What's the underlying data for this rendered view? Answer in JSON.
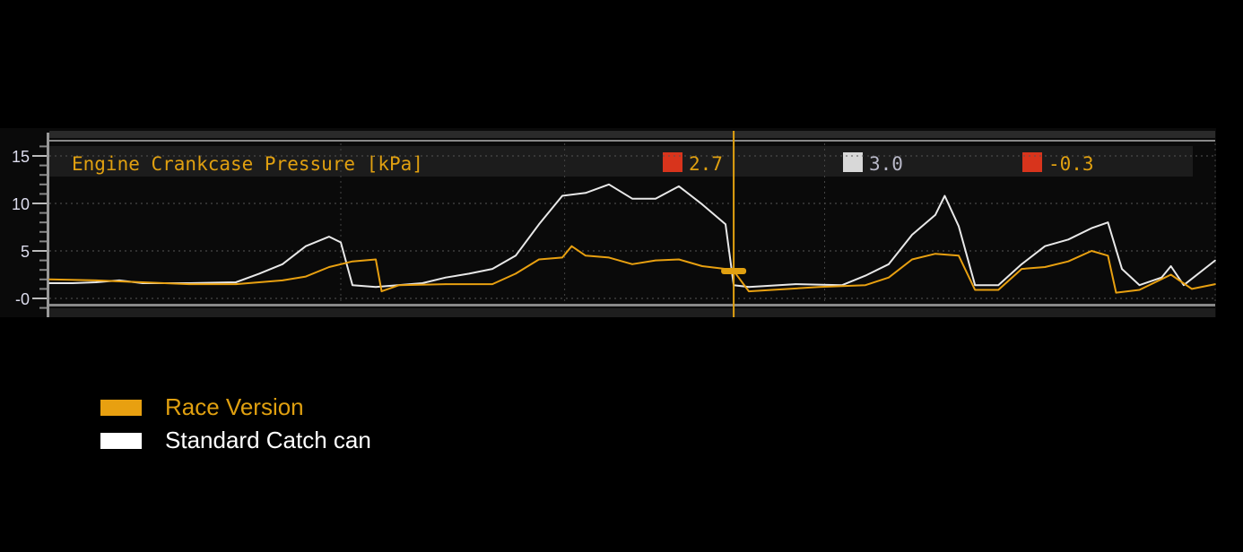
{
  "chart_data": {
    "type": "line",
    "title": "Engine Crankcase Pressure [kPa]",
    "xlabel": "",
    "ylabel": "",
    "xlim": [
      0,
      100
    ],
    "ylim": [
      -1.5,
      16.5
    ],
    "y_ticks": [
      "15",
      "10",
      "5",
      "-0"
    ],
    "y_tick_values": [
      15,
      10,
      5,
      0
    ],
    "grid": true,
    "cursor_x": 58.7,
    "readouts": [
      {
        "icon": "red-crosshatch-icon",
        "value": "2.7",
        "icon_color": "#d8341c",
        "text_color": "#e0a010"
      },
      {
        "icon": "white-zero-icon",
        "value": "3.0",
        "icon_color": "#d8d8d8",
        "text_color": "#b8b8c8"
      },
      {
        "icon": "red-triangle-icon",
        "value": "-0.3",
        "icon_color": "#d8341c",
        "text_color": "#e0a010"
      }
    ],
    "series": [
      {
        "name": "Standard Catch can",
        "color": "#e8e8e8",
        "points": [
          [
            0,
            1.6
          ],
          [
            2,
            1.6
          ],
          [
            4,
            1.7
          ],
          [
            6,
            1.9
          ],
          [
            8,
            1.6
          ],
          [
            12,
            1.6
          ],
          [
            16,
            1.7
          ],
          [
            18,
            2.6
          ],
          [
            20,
            3.6
          ],
          [
            22,
            5.5
          ],
          [
            24,
            6.5
          ],
          [
            25,
            5.9
          ],
          [
            26,
            1.4
          ],
          [
            28,
            1.2
          ],
          [
            32,
            1.6
          ],
          [
            34,
            2.2
          ],
          [
            36,
            2.6
          ],
          [
            38,
            3.1
          ],
          [
            40,
            4.5
          ],
          [
            42,
            7.8
          ],
          [
            44,
            10.8
          ],
          [
            46,
            11.1
          ],
          [
            48,
            12
          ],
          [
            50,
            10.5
          ],
          [
            52,
            10.5
          ],
          [
            54,
            11.8
          ],
          [
            56,
            9.9
          ],
          [
            58,
            7.8
          ],
          [
            58.7,
            1.4
          ],
          [
            60,
            1.2
          ],
          [
            64,
            1.5
          ],
          [
            68,
            1.4
          ],
          [
            70,
            2.4
          ],
          [
            72,
            3.6
          ],
          [
            74,
            6.7
          ],
          [
            76,
            8.8
          ],
          [
            76.8,
            10.8
          ],
          [
            78,
            7.6
          ],
          [
            79.4,
            1.4
          ],
          [
            81.4,
            1.4
          ],
          [
            83.4,
            3.6
          ],
          [
            85.4,
            5.5
          ],
          [
            87.4,
            6.2
          ],
          [
            89.4,
            7.4
          ],
          [
            90.8,
            8
          ],
          [
            92,
            3.1
          ],
          [
            93.5,
            1.4
          ],
          [
            95.4,
            2.2
          ],
          [
            96.2,
            3.4
          ],
          [
            97.3,
            1.4
          ],
          [
            100,
            4
          ]
        ]
      },
      {
        "name": "Race Version",
        "color": "#e8a010",
        "points": [
          [
            0,
            2
          ],
          [
            4,
            1.9
          ],
          [
            8,
            1.7
          ],
          [
            12,
            1.5
          ],
          [
            16,
            1.5
          ],
          [
            20,
            1.9
          ],
          [
            22,
            2.3
          ],
          [
            24,
            3.3
          ],
          [
            26,
            3.9
          ],
          [
            28,
            4.1
          ],
          [
            28.5,
            0.75
          ],
          [
            30,
            1.4
          ],
          [
            34,
            1.5
          ],
          [
            38,
            1.5
          ],
          [
            40,
            2.6
          ],
          [
            42,
            4.1
          ],
          [
            44,
            4.3
          ],
          [
            44.8,
            5.5
          ],
          [
            46,
            4.5
          ],
          [
            48,
            4.3
          ],
          [
            50,
            3.6
          ],
          [
            52,
            4
          ],
          [
            54,
            4.1
          ],
          [
            56,
            3.4
          ],
          [
            58,
            3.1
          ],
          [
            58.7,
            2.9
          ],
          [
            60,
            0.75
          ],
          [
            62,
            0.9
          ],
          [
            66,
            1.2
          ],
          [
            70,
            1.4
          ],
          [
            72,
            2.2
          ],
          [
            74,
            4.1
          ],
          [
            76,
            4.7
          ],
          [
            78,
            4.5
          ],
          [
            79.4,
            0.9
          ],
          [
            81.4,
            0.9
          ],
          [
            83.4,
            3.1
          ],
          [
            85.4,
            3.3
          ],
          [
            87.4,
            3.9
          ],
          [
            89.4,
            5
          ],
          [
            90.8,
            4.5
          ],
          [
            91.5,
            0.6
          ],
          [
            93.5,
            0.9
          ],
          [
            96.2,
            2.5
          ],
          [
            98,
            1
          ],
          [
            100,
            1.5
          ]
        ]
      }
    ],
    "legend": {
      "placement": "bottom-left",
      "entries": [
        {
          "label": "Race Version",
          "color": "#e8a010",
          "text_color": "#e0a010"
        },
        {
          "label": "Standard Catch can",
          "color": "#ffffff",
          "text_color": "#ffffff"
        }
      ]
    }
  }
}
